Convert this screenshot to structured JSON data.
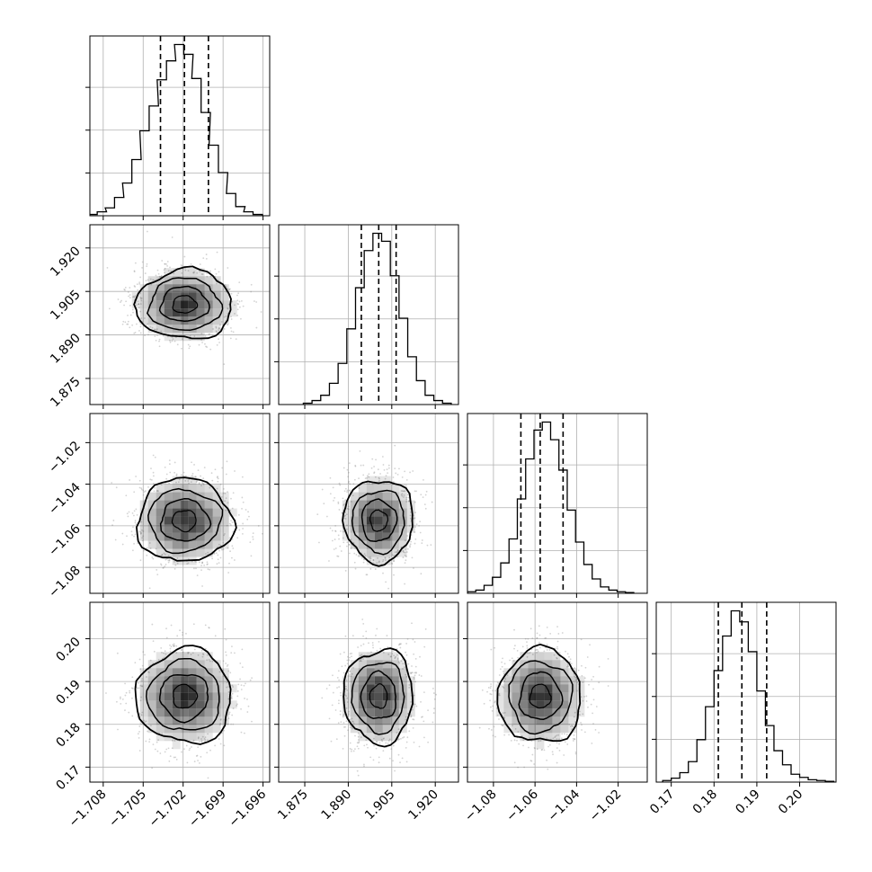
{
  "chart_data": {
    "type": "corner",
    "n_params": 4,
    "params": [
      {
        "range": [
          -1.709,
          -1.6955
        ],
        "ticks": [
          -1.708,
          -1.705,
          -1.702,
          -1.699,
          -1.696
        ],
        "tick_labels": [
          "−1.708",
          "−1.705",
          "−1.702",
          "−1.699",
          "−1.696"
        ],
        "quantiles": [
          -1.7037,
          -1.7019,
          -1.7001
        ],
        "median": -1.7019,
        "sigma": 0.0018,
        "hist_bins": [
          -1.7088,
          -1.7081,
          -1.7075,
          -1.7068,
          -1.7062,
          -1.7055,
          -1.7049,
          -1.7042,
          -1.7036,
          -1.7029,
          -1.7023,
          -1.7016,
          -1.701,
          -1.7003,
          -1.6997,
          -1.699,
          -1.6984,
          -1.6977,
          -1.6971,
          -1.6964
        ],
        "hist_counts": [
          2,
          6,
          12,
          28,
          50,
          86,
          130,
          168,
          208,
          237,
          262,
          247,
          210,
          158,
          108,
          66,
          34,
          14,
          6,
          2
        ]
      },
      {
        "range": [
          1.866,
          1.928
        ],
        "ticks": [
          1.875,
          1.89,
          1.905,
          1.92
        ],
        "tick_labels": [
          "1.875",
          "1.890",
          "1.905",
          "1.920"
        ],
        "quantiles": [
          1.8945,
          1.9005,
          1.9065
        ],
        "median": 1.9005,
        "sigma": 0.006,
        "hist_bins": [
          1.876,
          1.879,
          1.882,
          1.885,
          1.888,
          1.891,
          1.894,
          1.897,
          1.9,
          1.903,
          1.906,
          1.909,
          1.912,
          1.915,
          1.918,
          1.921,
          1.924
        ],
        "hist_counts": [
          2,
          6,
          14,
          32,
          62,
          114,
          176,
          232,
          258,
          246,
          194,
          130,
          72,
          36,
          14,
          6,
          2
        ]
      },
      {
        "range": [
          -1.0925,
          -1.006
        ],
        "ticks": [
          -1.08,
          -1.06,
          -1.04,
          -1.02
        ],
        "tick_labels": [
          "−1.08",
          "−1.06",
          "−1.04",
          "−1.02"
        ],
        "quantiles": [
          -1.0668,
          -1.0575,
          -1.0465
        ],
        "median": -1.0575,
        "sigma": 0.01,
        "hist_bins": [
          -1.0905,
          -1.0865,
          -1.0825,
          -1.0785,
          -1.0745,
          -1.0705,
          -1.0665,
          -1.0625,
          -1.0585,
          -1.0545,
          -1.0505,
          -1.0465,
          -1.0425,
          -1.0385,
          -1.0345,
          -1.0305,
          -1.0265,
          -1.0225,
          -1.0185,
          -1.0145
        ],
        "hist_counts": [
          2,
          4,
          10,
          20,
          38,
          68,
          118,
          168,
          204,
          214,
          192,
          154,
          104,
          64,
          36,
          18,
          8,
          4,
          2,
          1
        ]
      },
      {
        "range": [
          0.1665,
          0.2085
        ],
        "ticks": [
          0.17,
          0.18,
          0.19,
          0.2
        ],
        "tick_labels": [
          "0.17",
          "0.18",
          "0.19",
          "0.20"
        ],
        "quantiles": [
          0.181,
          0.1865,
          0.1923
        ],
        "median": 0.1865,
        "sigma": 0.0055,
        "hist_bins": [
          0.169,
          0.171,
          0.173,
          0.175,
          0.177,
          0.179,
          0.181,
          0.183,
          0.185,
          0.187,
          0.189,
          0.191,
          0.193,
          0.195,
          0.197,
          0.199,
          0.201,
          0.203,
          0.205,
          0.207
        ],
        "hist_counts": [
          2,
          5,
          12,
          26,
          54,
          96,
          142,
          186,
          218,
          204,
          166,
          116,
          72,
          40,
          22,
          10,
          6,
          3,
          2,
          1
        ]
      }
    ],
    "grid": true,
    "colors": {
      "contour": "#000000",
      "quantile_line": "#000000",
      "grid": "#b0b0b0",
      "scatter": "#808080",
      "density": "#000000"
    }
  }
}
